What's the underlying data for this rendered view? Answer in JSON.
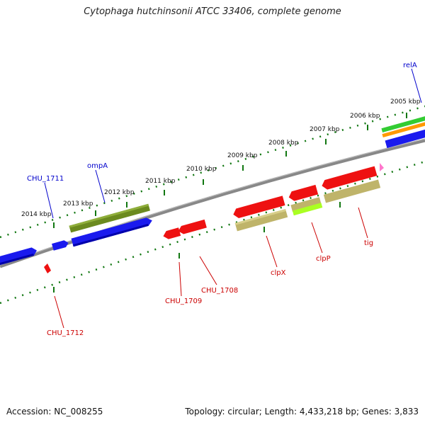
{
  "title": "Cytophaga hutchinsonii ATCC 33406, complete genome",
  "footer": {
    "accession": "Accession: NC_008255",
    "summary": "Topology: circular; Length: 4,433,218 bp; Genes: 3,833"
  },
  "ticks": [
    "2014 kbp",
    "2013 kbp",
    "2012 kbp",
    "2011 kbp",
    "2010 kbp",
    "2009 kbp",
    "2008 kbp",
    "2007 kbp",
    "2006 kbp",
    "2005 kbp"
  ],
  "genes": {
    "forward": [
      "CHU_1711",
      "ompA",
      "relA"
    ],
    "reverse": [
      "CHU_1712",
      "CHU_1709",
      "CHU_1708",
      "clpX",
      "clpP",
      "tig"
    ]
  },
  "colors": {
    "forward_label": "#0000cc",
    "reverse_label": "#cc0000",
    "cds_blue": "#1a1aee",
    "cds_red": "#ee1111",
    "olive_dark": "#6b8a1f",
    "olive_light": "#bfb46a",
    "lime": "#aaff22",
    "green": "#33cc33",
    "orange": "#ff9900",
    "pink": "#ff77cc",
    "backbone": "#888888",
    "tick": "#117711"
  }
}
